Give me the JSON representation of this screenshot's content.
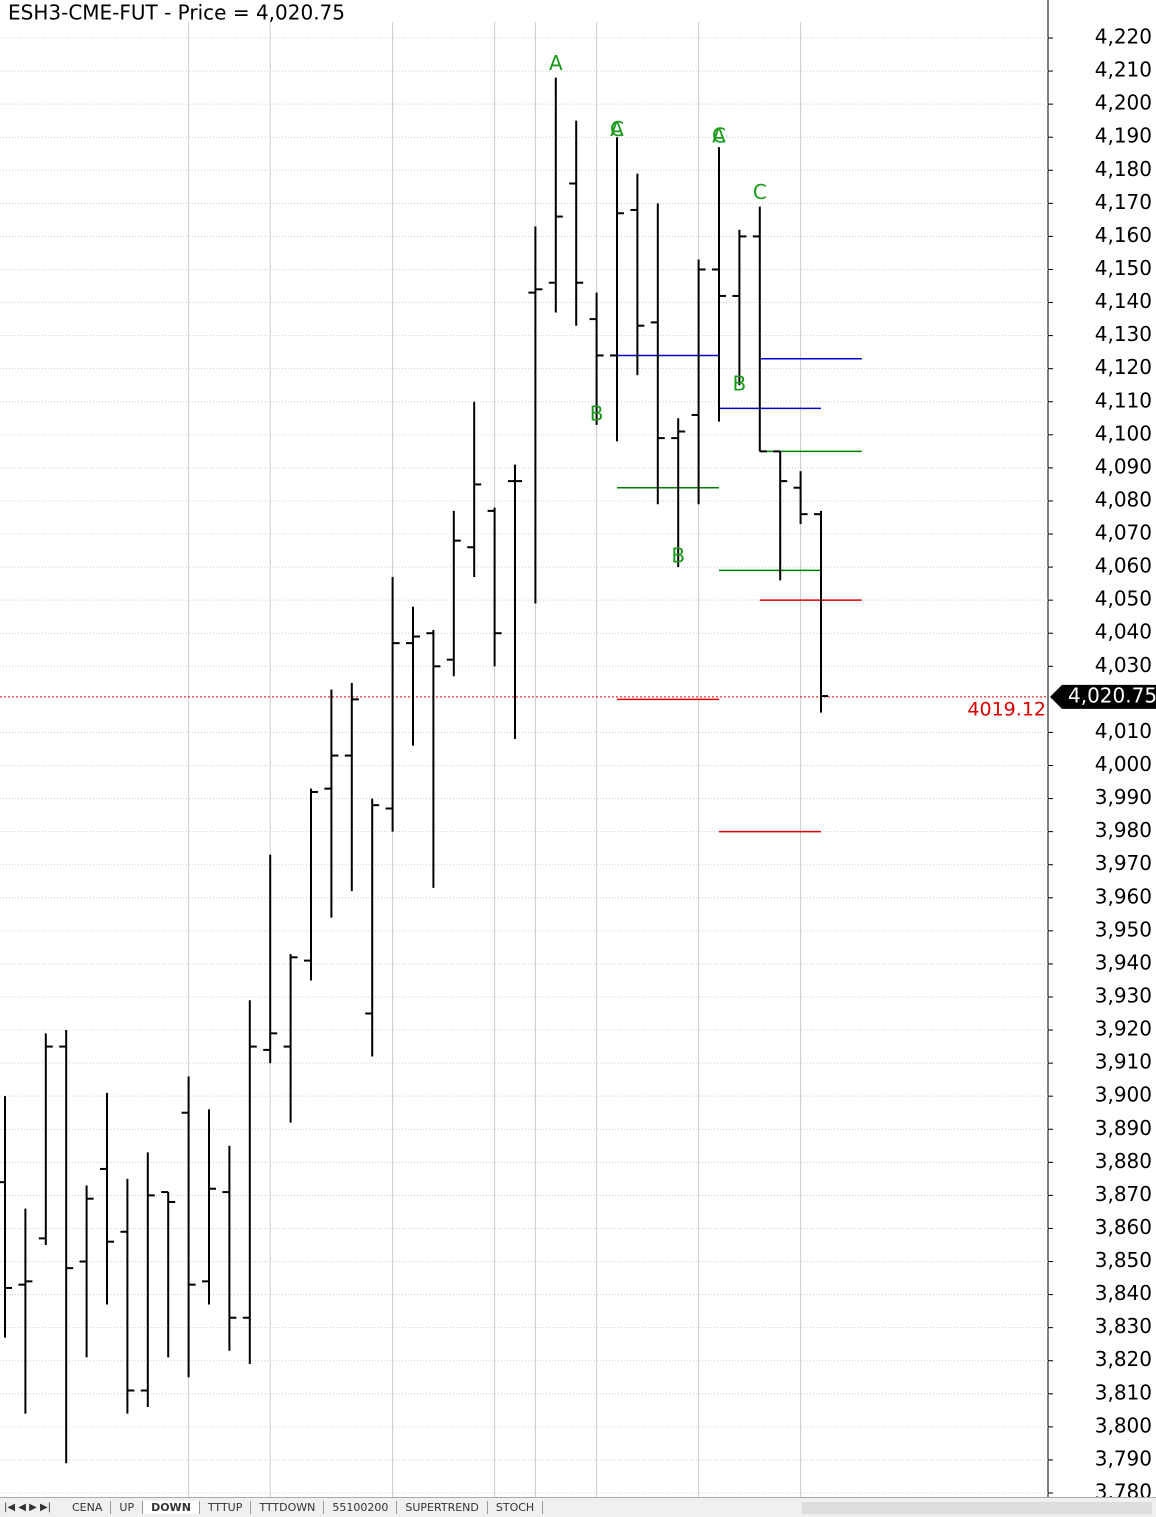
{
  "chart_data": {
    "type": "ohlc",
    "title": "ESH3-CME-FUT - Price = 4,020.75",
    "series": [
      {
        "color": "#000000",
        "open": [
          3874,
          3843,
          3857,
          3915,
          3850,
          3878,
          3859,
          3811,
          3871,
          3895,
          3844,
          3871,
          3833,
          3914,
          3915,
          3941,
          3993,
          4003,
          3925,
          3987,
          4037,
          4040,
          4032,
          4066,
          4077,
          4086,
          4143,
          4146,
          4176,
          4135,
          4124,
          4168,
          4134,
          4099,
          4106,
          4150,
          4142,
          4160,
          4095,
          4084,
          4076
        ],
        "high": [
          3900,
          3866,
          3919,
          3920,
          3873,
          3901,
          3875,
          3883,
          3871,
          3906,
          3896,
          3885,
          3929,
          3973,
          3943,
          3993,
          4023,
          4025,
          3990,
          4057,
          4048,
          4041,
          4077,
          4110,
          4078,
          4091,
          4163,
          4208,
          4195,
          4143,
          4190,
          4179,
          4170,
          4105,
          4153,
          4187,
          4162,
          4169,
          4095,
          4089,
          4077
        ],
        "low": [
          3827,
          3804,
          3855,
          3789,
          3821,
          3837,
          3804,
          3806,
          3821,
          3815,
          3837,
          3823,
          3819,
          3910,
          3892,
          3935,
          3954,
          3962,
          3912,
          3980,
          4006,
          3963,
          4027,
          4057,
          4030,
          4008,
          4049,
          4137,
          4133,
          4103,
          4098,
          4118,
          4079,
          4060,
          4079,
          4104,
          4115,
          4095,
          4056,
          4073,
          4016
        ],
        "close": [
          3842,
          3844,
          3915,
          3848,
          3869,
          3856,
          3811,
          3870,
          3868,
          3843,
          3872,
          3833,
          3915,
          3919,
          3942,
          3992,
          4003,
          4020,
          3988,
          4037,
          4039,
          4030,
          4068,
          4085,
          4040,
          4086,
          4144,
          4166,
          4146,
          4124,
          4167,
          4133,
          4099,
          4101,
          4150,
          4142,
          4160,
          4095,
          4086,
          4076,
          4021
        ]
      }
    ],
    "annotations": [
      {
        "text": "A",
        "x": 27,
        "y": 4212
      },
      {
        "text": "B",
        "x": 29,
        "y": 4106
      },
      {
        "text": "A",
        "x": 30,
        "y": 4192
      },
      {
        "text": "C",
        "x": 30,
        "y": 4192
      },
      {
        "text": "B",
        "x": 33,
        "y": 4063
      },
      {
        "text": "A",
        "x": 35,
        "y": 4190
      },
      {
        "text": "C",
        "x": 35,
        "y": 4190
      },
      {
        "text": "B",
        "x": 36,
        "y": 4115
      },
      {
        "text": "C",
        "x": 37,
        "y": 4173
      }
    ],
    "levels": [
      {
        "color": "#0000cc",
        "value": 4124,
        "from": 30,
        "to": 35
      },
      {
        "color": "#0000cc",
        "value": 4123,
        "from": 37,
        "to": 42
      },
      {
        "color": "#0000cc",
        "value": 4108,
        "from": 35,
        "to": 40
      },
      {
        "color": "#008000",
        "value": 4084,
        "from": 30,
        "to": 35
      },
      {
        "color": "#008000",
        "value": 4095,
        "from": 37,
        "to": 42
      },
      {
        "color": "#008000",
        "value": 4059,
        "from": 35,
        "to": 40
      },
      {
        "color": "#e00000",
        "value": 4050,
        "from": 37,
        "to": 42
      },
      {
        "color": "#e00000",
        "value": 4020,
        "from": 30,
        "to": 35
      },
      {
        "color": "#e00000",
        "value": 3980,
        "from": 35,
        "to": 40
      }
    ],
    "last_price": {
      "value": 4020.75,
      "label": "4,020.75"
    },
    "level_note": 4019.12,
    "vgrid": [
      9,
      13,
      19,
      24,
      26,
      29,
      34,
      39
    ],
    "ylim": [
      3780,
      4220
    ],
    "yticks": [
      {
        "value": 4220,
        "label": "4,220"
      },
      {
        "value": 4210,
        "label": "4,210"
      },
      {
        "value": 4200,
        "label": "4,200"
      },
      {
        "value": 4190,
        "label": "4,190"
      },
      {
        "value": 4180,
        "label": "4,180"
      },
      {
        "value": 4170,
        "label": "4,170"
      },
      {
        "value": 4160,
        "label": "4,160"
      },
      {
        "value": 4150,
        "label": "4,150"
      },
      {
        "value": 4140,
        "label": "4,140"
      },
      {
        "value": 4130,
        "label": "4,130"
      },
      {
        "value": 4120,
        "label": "4,120"
      },
      {
        "value": 4110,
        "label": "4,110"
      },
      {
        "value": 4100,
        "label": "4,100"
      },
      {
        "value": 4090,
        "label": "4,090"
      },
      {
        "value": 4080,
        "label": "4,080"
      },
      {
        "value": 4070,
        "label": "4,070"
      },
      {
        "value": 4060,
        "label": "4,060"
      },
      {
        "value": 4050,
        "label": "4,050"
      },
      {
        "value": 4040,
        "label": "4,040"
      },
      {
        "value": 4030,
        "label": "4,030"
      },
      {
        "value": 4010,
        "label": "4,010"
      },
      {
        "value": 4000,
        "label": "4,000"
      },
      {
        "value": 3990,
        "label": "3,990"
      },
      {
        "value": 3980,
        "label": "3,980"
      },
      {
        "value": 3970,
        "label": "3,970"
      },
      {
        "value": 3960,
        "label": "3,960"
      },
      {
        "value": 3950,
        "label": "3,950"
      },
      {
        "value": 3940,
        "label": "3,940"
      },
      {
        "value": 3930,
        "label": "3,930"
      },
      {
        "value": 3920,
        "label": "3,920"
      },
      {
        "value": 3910,
        "label": "3,910"
      },
      {
        "value": 3900,
        "label": "3,900"
      },
      {
        "value": 3890,
        "label": "3,890"
      },
      {
        "value": 3880,
        "label": "3,880"
      },
      {
        "value": 3870,
        "label": "3,870"
      },
      {
        "value": 3860,
        "label": "3,860"
      },
      {
        "value": 3850,
        "label": "3,850"
      },
      {
        "value": 3840,
        "label": "3,840"
      },
      {
        "value": 3830,
        "label": "3,830"
      },
      {
        "value": 3820,
        "label": "3,820"
      },
      {
        "value": 3810,
        "label": "3,810"
      },
      {
        "value": 3800,
        "label": "3,800"
      },
      {
        "value": 3790,
        "label": "3,790"
      },
      {
        "value": 3780,
        "label": "3,780"
      }
    ],
    "grid": true
  },
  "tabs": [
    "CENA",
    "UP",
    "DOWN",
    "TTTUP",
    "TTTDOWN",
    "55100200",
    "SUPERTREND",
    "STOCH"
  ],
  "active_tab": 2
}
